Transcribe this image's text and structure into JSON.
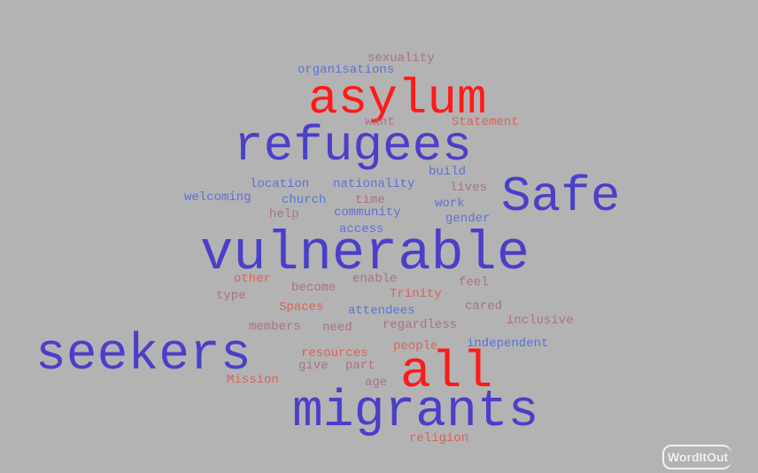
{
  "palette": {
    "background": "#b3b3b3",
    "red": "#ff1a1a",
    "indigo": "#4b3fc9",
    "blue": "#5a73d6",
    "mauve": "#a9708c",
    "rose": "#d9635a"
  },
  "words": [
    {
      "text": "asylum",
      "color": "#ff1a1a"
    },
    {
      "text": "refugees",
      "color": "#4b3fc9"
    },
    {
      "text": "Safe",
      "color": "#4b3fc9"
    },
    {
      "text": "vulnerable",
      "color": "#4b3fc9"
    },
    {
      "text": "seekers",
      "color": "#4b3fc9"
    },
    {
      "text": "all",
      "color": "#ff1a1a"
    },
    {
      "text": "migrants",
      "color": "#4b3fc9"
    },
    {
      "text": "sexuality",
      "color": "#a9708c"
    },
    {
      "text": "organisations",
      "color": "#5a73d6"
    },
    {
      "text": "want",
      "color": "#a9708c"
    },
    {
      "text": "Statement",
      "color": "#d9635a"
    },
    {
      "text": "build",
      "color": "#5a73d6"
    },
    {
      "text": "location",
      "color": "#5a73d6"
    },
    {
      "text": "nationality",
      "color": "#5a73d6"
    },
    {
      "text": "lives",
      "color": "#a9708c"
    },
    {
      "text": "welcoming",
      "color": "#5a73d6"
    },
    {
      "text": "church",
      "color": "#5a73d6"
    },
    {
      "text": "time",
      "color": "#a9708c"
    },
    {
      "text": "work",
      "color": "#5a73d6"
    },
    {
      "text": "help",
      "color": "#a9708c"
    },
    {
      "text": "community",
      "color": "#5a73d6"
    },
    {
      "text": "gender",
      "color": "#5a73d6"
    },
    {
      "text": "access",
      "color": "#5a73d6"
    },
    {
      "text": "other",
      "color": "#d9635a"
    },
    {
      "text": "enable",
      "color": "#a9708c"
    },
    {
      "text": "feel",
      "color": "#a9708c"
    },
    {
      "text": "type",
      "color": "#a9708c"
    },
    {
      "text": "become",
      "color": "#a9708c"
    },
    {
      "text": "Trinity",
      "color": "#d9635a"
    },
    {
      "text": "Spaces",
      "color": "#d9635a"
    },
    {
      "text": "attendees",
      "color": "#5a73d6"
    },
    {
      "text": "cared",
      "color": "#a9708c"
    },
    {
      "text": "members",
      "color": "#a9708c"
    },
    {
      "text": "need",
      "color": "#a9708c"
    },
    {
      "text": "regardless",
      "color": "#a9708c"
    },
    {
      "text": "inclusive",
      "color": "#a9708c"
    },
    {
      "text": "resources",
      "color": "#d9635a"
    },
    {
      "text": "people",
      "color": "#d9635a"
    },
    {
      "text": "independent",
      "color": "#5a73d6"
    },
    {
      "text": "give",
      "color": "#a9708c"
    },
    {
      "text": "part",
      "color": "#a9708c"
    },
    {
      "text": "Mission",
      "color": "#d9635a"
    },
    {
      "text": "age",
      "color": "#a9708c"
    },
    {
      "text": "religion",
      "color": "#d9635a"
    }
  ],
  "branding": {
    "text": "WordItOut"
  }
}
